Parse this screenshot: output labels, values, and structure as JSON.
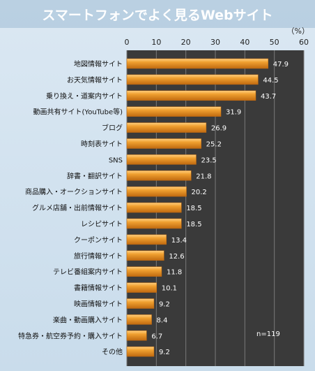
{
  "chart_data": {
    "type": "bar",
    "orientation": "horizontal",
    "title": "スマートフォンでよく見るWebサイト",
    "unit": "（%）",
    "note": "n=119",
    "xlim": [
      0,
      60
    ],
    "ticks": [
      0,
      10,
      20,
      30,
      40,
      50,
      60
    ],
    "grid": true,
    "categories": [
      "地図情報サイト",
      "お天気情報サイト",
      "乗り換え・道案内サイト",
      "動画共有サイト(YouTube等)",
      "ブログ",
      "時刻表サイト",
      "SNS",
      "辞書・翻訳サイト",
      "商品購入・オークションサイト",
      "グルメ店舗・出前情報サイト",
      "レシピサイト",
      "クーポンサイト",
      "旅行情報サイト",
      "テレビ番組案内サイト",
      "書籍情報サイト",
      "映画情報サイト",
      "楽曲・動画購入サイト",
      "特急券・航空券予約・購入サイト",
      "その他"
    ],
    "values": [
      47.9,
      44.5,
      43.7,
      31.9,
      26.9,
      25.2,
      23.5,
      21.8,
      20.2,
      18.5,
      18.5,
      13.4,
      12.6,
      11.8,
      10.1,
      9.2,
      8.4,
      6.7,
      9.2
    ],
    "colors": {
      "plot_bg": "#3a3a3a",
      "bar": "#f0a030",
      "bar_light": "#ffd080",
      "bar_dark": "#c06a10",
      "grid": "#7a7a7a"
    }
  }
}
